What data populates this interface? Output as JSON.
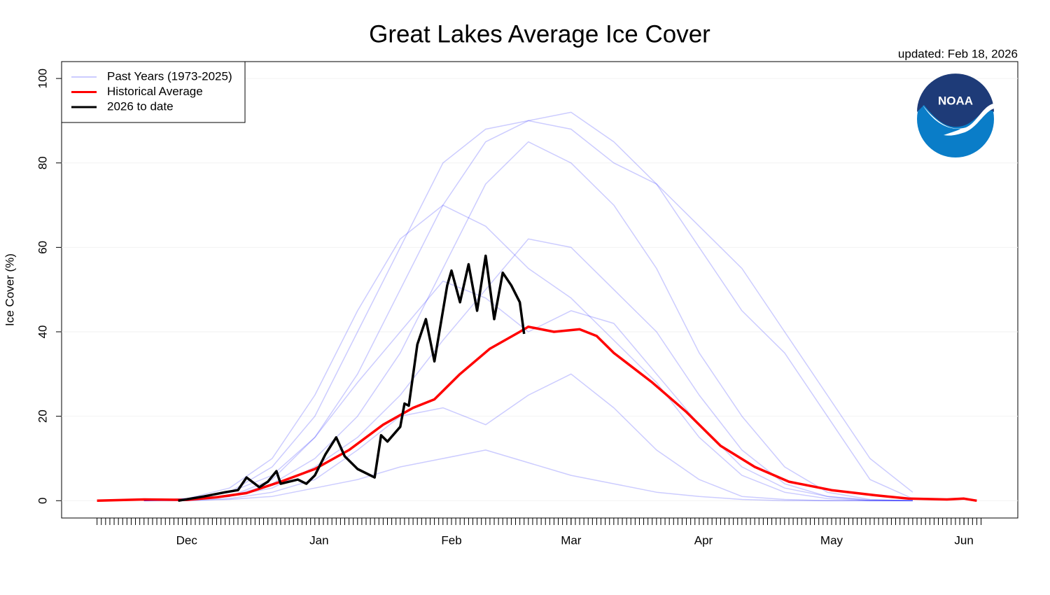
{
  "chart_data": {
    "type": "line",
    "title": "Great Lakes Average Ice Cover",
    "subtitle": "updated: Feb 18, 2026",
    "y_label": "Ice Cover (%)",
    "logo_text": "NOAA",
    "xlim": [
      -29.3,
      194.6
    ],
    "ylim": [
      -4.1,
      104
    ],
    "yticks": [
      0,
      20,
      40,
      60,
      80,
      100
    ],
    "xticks": [
      {
        "value": 0,
        "label": "Dec"
      },
      {
        "value": 31,
        "label": "Jan"
      },
      {
        "value": 62,
        "label": "Feb"
      },
      {
        "value": 90,
        "label": "Mar"
      },
      {
        "value": 121,
        "label": "Apr"
      },
      {
        "value": 151,
        "label": "May"
      },
      {
        "value": 182,
        "label": "Jun"
      }
    ],
    "xminor_ticks": {
      "from": -21,
      "to": 186,
      "step": 1
    },
    "grid": true,
    "legend": "top-left",
    "series": [
      {
        "name": "Past Years (1973-2025)",
        "color": "#0000ff",
        "opacity": 0.2,
        "x": [
          -10,
          0,
          10,
          20,
          30,
          40,
          50,
          60,
          70,
          80,
          90,
          100,
          110,
          120,
          130,
          140,
          150,
          160,
          170
        ],
        "lines": [
          [
            0,
            0.5,
            2,
            8,
            20,
            40,
            60,
            80,
            88,
            90,
            92,
            85,
            75,
            60,
            45,
            35,
            20,
            5,
            0.5
          ],
          [
            0,
            0.3,
            1,
            4,
            10,
            20,
            35,
            55,
            75,
            85,
            80,
            70,
            55,
            35,
            20,
            8,
            2,
            0.3,
            0
          ],
          [
            0,
            0,
            0.3,
            1,
            3,
            5,
            8,
            10,
            12,
            9,
            6,
            4,
            2,
            1,
            0.3,
            0,
            0,
            0,
            0
          ],
          [
            0,
            0.5,
            3,
            10,
            25,
            45,
            62,
            70,
            65,
            55,
            48,
            38,
            28,
            15,
            6,
            2,
            0.5,
            0,
            0
          ],
          [
            0,
            0.2,
            1,
            3,
            8,
            15,
            25,
            38,
            50,
            62,
            60,
            50,
            40,
            25,
            12,
            4,
            1,
            0,
            0
          ],
          [
            0,
            0,
            0.5,
            2,
            5,
            12,
            20,
            22,
            18,
            25,
            30,
            22,
            12,
            5,
            1,
            0.3,
            0,
            0,
            0
          ],
          [
            0,
            0.2,
            1,
            5,
            15,
            28,
            40,
            52,
            48,
            40,
            45,
            42,
            30,
            18,
            8,
            3,
            1,
            0.2,
            0
          ],
          [
            0,
            0.5,
            2,
            6,
            15,
            30,
            50,
            70,
            85,
            90,
            88,
            80,
            75,
            65,
            55,
            40,
            25,
            10,
            2
          ]
        ]
      },
      {
        "name": "Historical Average",
        "color": "#ff0000",
        "x": [
          -21,
          -10,
          0,
          7,
          14,
          22,
          30,
          38,
          46,
          53,
          58,
          64,
          71,
          78,
          80,
          86,
          92,
          96,
          100,
          109,
          117,
          125,
          133,
          141,
          151,
          161,
          169,
          178,
          182,
          185
        ],
        "values": [
          0,
          0.3,
          0.2,
          0.8,
          1.8,
          4.5,
          7.5,
          12,
          18,
          22,
          24,
          30,
          36,
          40,
          41.2,
          40,
          40.6,
          39,
          35,
          28,
          21,
          13,
          8,
          4.5,
          2.5,
          1.3,
          0.5,
          0.3,
          0.5,
          0
        ]
      },
      {
        "name": "2026 to date",
        "color": "#000000",
        "x": [
          -2,
          4,
          9,
          12,
          14,
          17,
          19,
          21,
          22,
          24,
          26,
          28,
          30,
          32.5,
          35,
          37,
          40,
          44,
          45.5,
          47,
          50,
          51,
          52,
          54,
          56,
          58,
          61,
          62,
          64,
          66,
          68,
          70,
          72,
          74,
          76,
          78,
          79
        ],
        "values": [
          0,
          1,
          2,
          2.5,
          5.5,
          3.2,
          4.5,
          7,
          4,
          4.5,
          5,
          4,
          6,
          11,
          15,
          10.5,
          7.5,
          5.5,
          15.5,
          14,
          17.5,
          23,
          22.5,
          37,
          43,
          33,
          51,
          54.5,
          47,
          56,
          45,
          58,
          43,
          54,
          51,
          47,
          39.5
        ]
      }
    ]
  }
}
